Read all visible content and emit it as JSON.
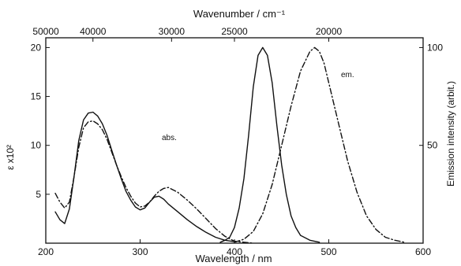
{
  "chart_data": {
    "type": "line",
    "title": "",
    "xlabel": "Wavelength / nm",
    "ylabel_left": "ε x10²",
    "ylabel_right": "Emission intensity (arbit.)",
    "top_axis_label": "Wavenumber / cm⁻¹",
    "xlim": [
      200,
      600
    ],
    "ylim_left": [
      0,
      21
    ],
    "ylim_right": [
      0,
      105
    ],
    "x_ticks": [
      200,
      300,
      400,
      500,
      600
    ],
    "y_left_ticks": [
      5,
      10,
      15,
      20
    ],
    "y_right_ticks": [
      50,
      100
    ],
    "top_ticks": [
      50000,
      40000,
      30000,
      25000,
      20000
    ],
    "grid": false,
    "annotations": [
      {
        "text": "abs.",
        "x": 262,
        "y": 11.7,
        "axis": "left"
      },
      {
        "text": "em.",
        "x": 513,
        "y": 93,
        "axis": "right"
      }
    ],
    "series": [
      {
        "style": "solid",
        "axis": "left",
        "x": [
          210,
          215,
          220,
          225,
          230,
          235,
          240,
          245,
          250,
          255,
          260,
          265,
          270,
          275,
          280,
          285,
          290,
          295,
          300,
          305,
          310,
          315,
          320,
          325,
          330,
          340,
          350,
          360,
          370,
          380,
          390,
          400
        ],
        "y": [
          3.2,
          2.4,
          2.0,
          3.5,
          6.8,
          10.5,
          12.6,
          13.3,
          13.4,
          13.0,
          12.2,
          11.0,
          9.5,
          8.0,
          6.6,
          5.3,
          4.4,
          3.7,
          3.4,
          3.6,
          4.2,
          4.7,
          4.8,
          4.5,
          4.0,
          3.2,
          2.4,
          1.7,
          1.1,
          0.6,
          0.3,
          0.15
        ]
      },
      {
        "style": "solid",
        "axis": "right",
        "x": [
          385,
          390,
          395,
          400,
          405,
          410,
          415,
          420,
          425,
          430,
          435,
          440,
          445,
          450,
          455,
          460,
          465,
          470,
          480,
          490
        ],
        "y": [
          0.5,
          1.5,
          3,
          8,
          18,
          33,
          55,
          80,
          96,
          100,
          96,
          82,
          60,
          40,
          25,
          14,
          8,
          4,
          1.5,
          0.5
        ]
      },
      {
        "style": "dashdot",
        "axis": "left",
        "x": [
          210,
          215,
          220,
          225,
          230,
          235,
          240,
          245,
          250,
          255,
          260,
          265,
          270,
          275,
          280,
          285,
          290,
          295,
          300,
          305,
          310,
          315,
          320,
          325,
          330,
          340,
          350,
          360,
          370,
          380,
          390,
          400,
          410,
          420
        ],
        "y": [
          5.1,
          4.2,
          3.6,
          4.2,
          6.8,
          9.8,
          11.8,
          12.4,
          12.5,
          12.2,
          11.6,
          10.6,
          9.3,
          8.0,
          6.8,
          5.7,
          4.8,
          4.1,
          3.7,
          3.8,
          4.2,
          4.8,
          5.3,
          5.6,
          5.7,
          5.2,
          4.4,
          3.5,
          2.5,
          1.5,
          0.7,
          0.2,
          0.1,
          0.0
        ]
      },
      {
        "style": "dashdot",
        "axis": "right",
        "x": [
          400,
          410,
          420,
          430,
          440,
          450,
          460,
          470,
          480,
          485,
          490,
          495,
          500,
          510,
          520,
          530,
          540,
          550,
          560,
          570,
          580
        ],
        "y": [
          0.5,
          2,
          6,
          15,
          30,
          50,
          70,
          88,
          98,
          100,
          98,
          92,
          82,
          62,
          42,
          26,
          14,
          7,
          3,
          1.5,
          0.5
        ]
      }
    ]
  }
}
